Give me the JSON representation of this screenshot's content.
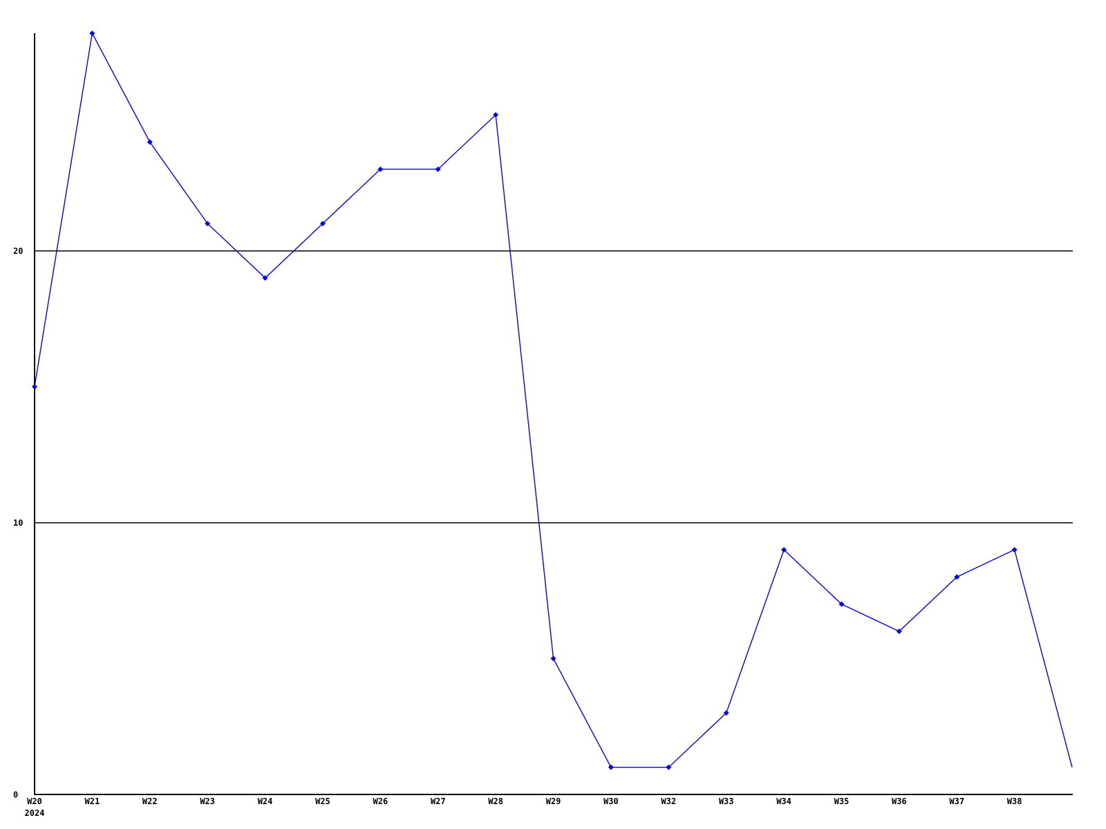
{
  "chart_data": {
    "type": "line",
    "title": "",
    "x_labels": [
      "W20",
      "W21",
      "W22",
      "W23",
      "W24",
      "W25",
      "W26",
      "W27",
      "W28",
      "W29",
      "W30",
      "W32",
      "W33",
      "W34",
      "W35",
      "W36",
      "W37",
      "W38",
      ""
    ],
    "x_axis_year": "2024",
    "values": [
      15,
      28,
      24,
      21,
      19,
      21,
      23,
      23,
      25,
      5,
      1,
      1,
      3,
      9,
      7,
      6,
      8,
      9,
      1
    ],
    "y_tick_labels": [
      "0",
      "10",
      "20"
    ],
    "y_ticks": [
      0,
      10,
      20
    ],
    "ylim": [
      0,
      28
    ],
    "grid_y_values": [
      10,
      20
    ],
    "grid": "horizontal",
    "legend_position": "none",
    "marker": "diamond",
    "line_color": "#0000ee",
    "marker_color": "#0000ee",
    "axis_color": "#000000",
    "grid_color": "#000000",
    "text_color": "#000000",
    "background_color": "#ffffff"
  }
}
